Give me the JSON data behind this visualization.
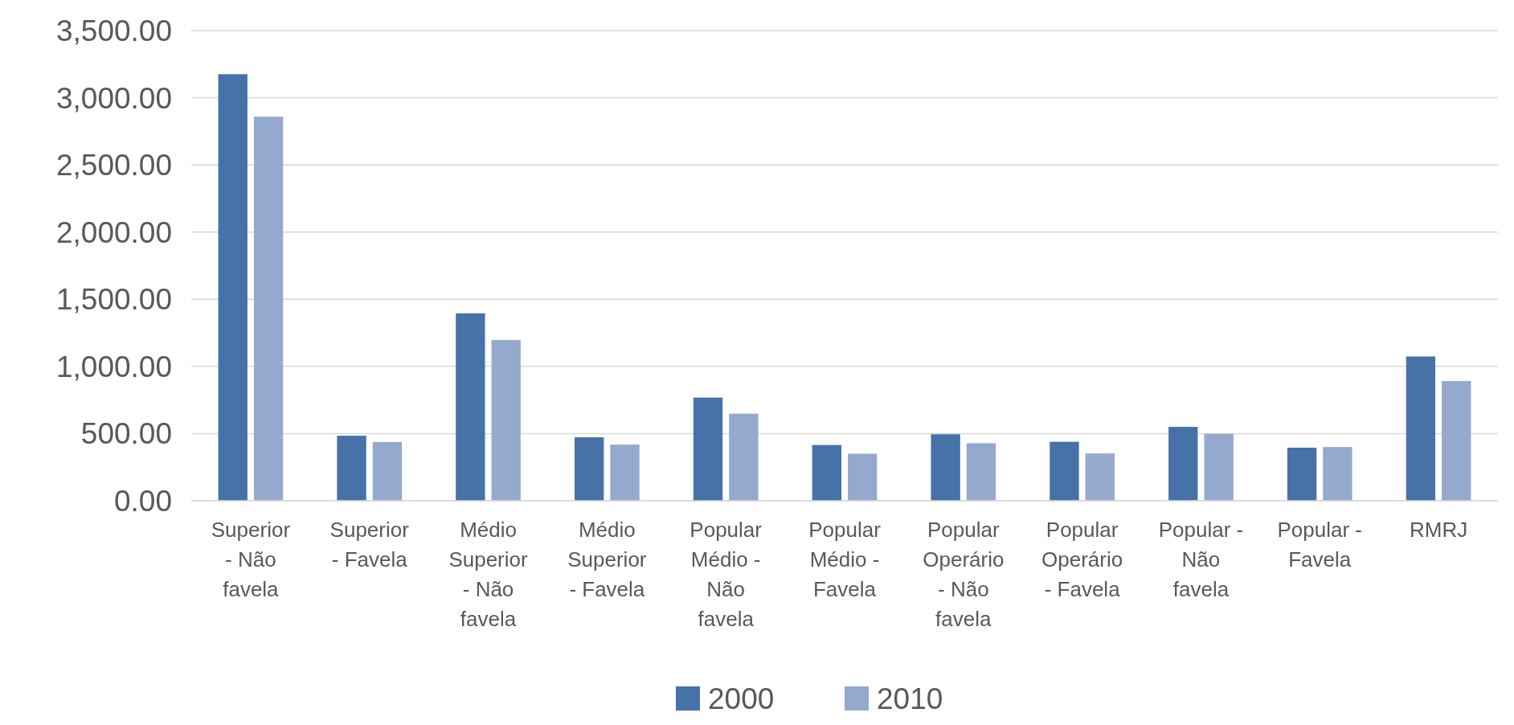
{
  "chart_data": {
    "type": "bar",
    "categories": [
      "Superior - Não favela",
      "Superior - Favela",
      "Médio Superior - Não favela",
      "Médio Superior - Favela",
      "Popular Médio - Não favela",
      "Popular Médio - Favela",
      "Popular Operário - Não favela",
      "Popular Operário - Favela",
      "Popular - Não favela",
      "Popular - Favela",
      "RMRJ"
    ],
    "series": [
      {
        "name": "2000",
        "color": "#4672a7",
        "values": [
          3175,
          484,
          1395,
          472,
          768,
          415,
          495,
          439,
          550,
          395,
          1074
        ]
      },
      {
        "name": "2010",
        "color": "#95a9cf",
        "values": [
          2859,
          437,
          1196,
          418,
          648,
          350,
          428,
          352,
          498,
          400,
          891
        ]
      }
    ],
    "ylim": [
      0,
      3500
    ],
    "yticks": [
      {
        "value": 0,
        "label": "0.00"
      },
      {
        "value": 500,
        "label": "500.00"
      },
      {
        "value": 1000,
        "label": "1,000.00"
      },
      {
        "value": 1500,
        "label": "1,500.00"
      },
      {
        "value": 2000,
        "label": "2,000.00"
      },
      {
        "value": 2500,
        "label": "2,500.00"
      },
      {
        "value": 3000,
        "label": "3,000.00"
      },
      {
        "value": 3500,
        "label": "3,500.00"
      }
    ],
    "grid": "y",
    "legend": "bottom"
  }
}
